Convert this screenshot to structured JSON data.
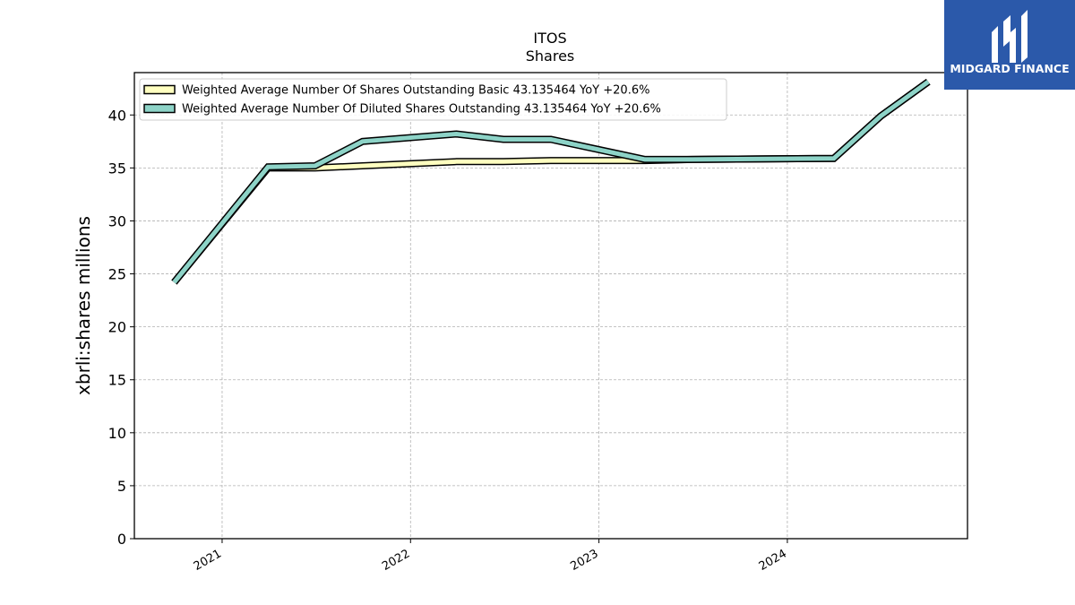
{
  "brand": {
    "name": "MIDGARD FINANCE",
    "logo_color": "#2b59aa",
    "icon": "midgard-m-logo-icon"
  },
  "chart_data": {
    "type": "line",
    "title": "ITOS",
    "subtitle": "Shares",
    "xlabel": "",
    "ylabel": "xbrli:shares millions",
    "x_ticks": [
      "2021",
      "2022",
      "2023",
      "2024"
    ],
    "xlim": [
      "2020-07-15",
      "2024-12-15"
    ],
    "ylim": [
      0,
      44
    ],
    "y_ticks": [
      0,
      5,
      10,
      15,
      20,
      25,
      30,
      35,
      40
    ],
    "grid": true,
    "legend_position": "top-left",
    "x": [
      "2020-09-30",
      "2021-03-31",
      "2021-06-30",
      "2021-09-30",
      "2022-03-31",
      "2022-06-30",
      "2022-09-30",
      "2023-03-31",
      "2023-06-30",
      "2024-03-31",
      "2024-06-30",
      "2024-09-30"
    ],
    "series": [
      {
        "name": "Weighted Average Number Of Shares Outstanding Basic  43.135464 YoY +20.6%",
        "color": "#ffffc0",
        "values": [
          24.2,
          35.0,
          35.0,
          35.2,
          35.6,
          35.6,
          35.7,
          35.7,
          35.8,
          35.9,
          39.9,
          43.135464
        ]
      },
      {
        "name": "Weighted Average Number Of Diluted Shares Outstanding  43.135464 YoY +20.6%",
        "color": "#8dd3c7",
        "values": [
          24.2,
          35.1,
          35.2,
          37.5,
          38.2,
          37.7,
          37.7,
          35.8,
          35.8,
          35.9,
          39.9,
          43.135464
        ]
      }
    ]
  }
}
